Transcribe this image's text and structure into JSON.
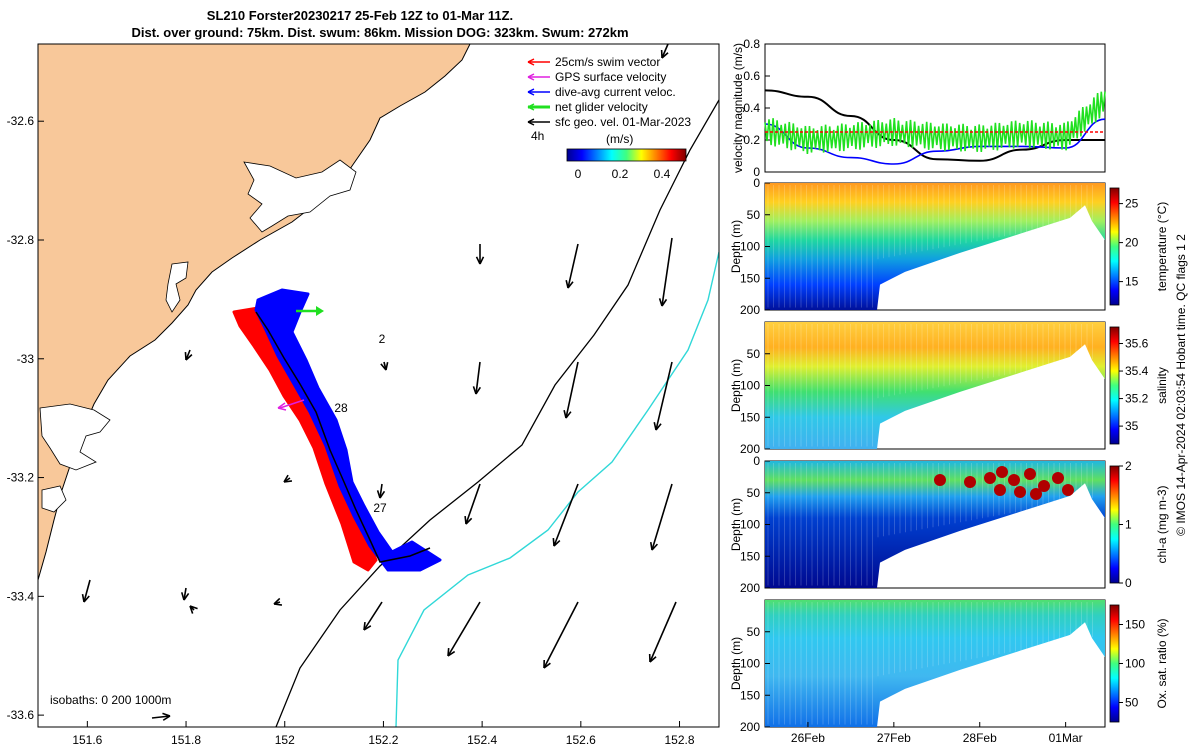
{
  "title": {
    "line1": "SL210 Forster20230217 25-Feb 12Z to 01-Mar 11Z.",
    "line2": "Dist. over ground: 75km. Dist. swum: 86km. Mission DOG: 323km. Swum: 272km"
  },
  "map": {
    "lon_range": [
      151.5,
      152.88
    ],
    "lat_range": [
      -33.62,
      -32.47
    ],
    "xticks": [
      "151.6",
      "151.8",
      "152",
      "152.2",
      "152.4",
      "152.6",
      "152.8"
    ],
    "yticks": [
      "-32.6",
      "-32.8",
      "-33",
      "-33.2",
      "-33.4",
      "-33.6"
    ],
    "legend": [
      {
        "label": "25cm/s swim vector",
        "color": "#ff0000"
      },
      {
        "label": "GPS surface velocity",
        "color": "#e020e0"
      },
      {
        "label": "dive-avg current veloc.",
        "color": "#0000ff"
      },
      {
        "label": "net glider velocity",
        "color": "#20e020"
      },
      {
        "label": "sfc geo. vel. 01-Mar-2023",
        "color": "#000000"
      }
    ],
    "legend_extra": "4h",
    "colorbar_unit": "(m/s)",
    "colorbar_ticks": [
      "0",
      "0.2",
      "0.4"
    ],
    "isobath_text": "isobaths: 0   200  1000m",
    "track_labels": [
      "2",
      "28",
      "27"
    ],
    "colors": {
      "land": "#f8c89a",
      "track_red": "#ff0000",
      "track_blue": "#0000ff",
      "isobath_200": "#000000",
      "isobath_1000": "#30d8d8"
    }
  },
  "chart_data": [
    {
      "type": "line",
      "ylabel": "velocity magnitude (m/s)",
      "ylim": [
        0,
        0.8
      ],
      "yticks": [
        "0",
        "0.2",
        "0.4",
        "0.6",
        "0.8"
      ],
      "x_range": [
        "2023-02-25 12:00",
        "2023-03-01 11:00"
      ],
      "series": [
        {
          "color": "#000000",
          "x": [
            "2023-02-25 12:00",
            "2023-02-26 00:00",
            "2023-02-26 12:00",
            "2023-02-27 00:00",
            "2023-02-27 12:00",
            "2023-02-28 00:00",
            "2023-02-28 12:00",
            "2023-03-01 00:00",
            "2023-03-01 11:00"
          ],
          "values": [
            0.51,
            0.47,
            0.35,
            0.2,
            0.08,
            0.07,
            0.14,
            0.2,
            0.2
          ]
        },
        {
          "color": "#0000ff",
          "x": [
            "2023-02-25 12:00",
            "2023-02-26 00:00",
            "2023-02-26 12:00",
            "2023-02-27 00:00",
            "2023-02-27 12:00",
            "2023-02-28 00:00",
            "2023-02-28 12:00",
            "2023-03-01 00:00",
            "2023-03-01 11:00"
          ],
          "values": [
            0.3,
            0.15,
            0.09,
            0.05,
            0.13,
            0.16,
            0.16,
            0.15,
            0.33
          ]
        },
        {
          "color": "#20e020",
          "x": [
            "2023-02-25 12:00",
            "2023-02-26 00:00",
            "2023-02-26 12:00",
            "2023-02-27 00:00",
            "2023-02-27 12:00",
            "2023-02-28 00:00",
            "2023-02-28 12:00",
            "2023-03-01 00:00",
            "2023-03-01 11:00"
          ],
          "values": [
            0.26,
            0.2,
            0.22,
            0.25,
            0.22,
            0.21,
            0.24,
            0.22,
            0.45
          ]
        },
        {
          "color": "#ff0000",
          "x": [
            "2023-02-25 12:00",
            "2023-03-01 11:00"
          ],
          "values": [
            0.25,
            0.25
          ]
        }
      ]
    },
    {
      "type": "heatmap",
      "ylabel": "Depth (m)",
      "ylim": [
        200,
        0
      ],
      "yticks": [
        "0",
        "50",
        "100",
        "150",
        "200"
      ],
      "colorbar_label": "temperature (°C)",
      "colorbar_ticks": [
        "15",
        "20",
        "25"
      ],
      "colorbar_range": [
        12,
        27
      ],
      "surface_value": 24.5,
      "bottom_value": 13
    },
    {
      "type": "heatmap",
      "ylabel": "Depth (m)",
      "ylim": [
        200,
        0
      ],
      "yticks": [
        "50",
        "100",
        "150",
        "200"
      ],
      "colorbar_label": "salinity",
      "colorbar_ticks": [
        "35",
        "35.2",
        "35.4",
        "35.6"
      ],
      "colorbar_range": [
        34.87,
        35.72
      ],
      "surface_value": 35.45,
      "bottom_value": 35.1
    },
    {
      "type": "heatmap",
      "ylabel": "Depth (m)",
      "ylim": [
        200,
        0
      ],
      "yticks": [
        "0",
        "50",
        "100",
        "150",
        "200"
      ],
      "colorbar_label": "chl-a (mg m-3)",
      "colorbar_ticks": [
        "0",
        "1",
        "2"
      ],
      "colorbar_range": [
        0,
        2
      ],
      "surface_value": 0.8,
      "bottom_value": 0.05
    },
    {
      "type": "heatmap",
      "ylabel": "Depth (m)",
      "ylim": [
        200,
        0
      ],
      "yticks": [
        "50",
        "100",
        "150",
        "200"
      ],
      "colorbar_label": "Ox. sat. ratio (%)",
      "colorbar_ticks": [
        "50",
        "100",
        "150"
      ],
      "colorbar_range": [
        25,
        175
      ],
      "surface_value": 100,
      "bottom_value": 70
    }
  ],
  "time_axis": {
    "ticks": [
      "26Feb",
      "27Feb",
      "28Feb",
      "01Mar"
    ]
  },
  "footer": "© IMOS 14-Apr-2024 02:03:54 Hobart time. QC flags 1  2"
}
